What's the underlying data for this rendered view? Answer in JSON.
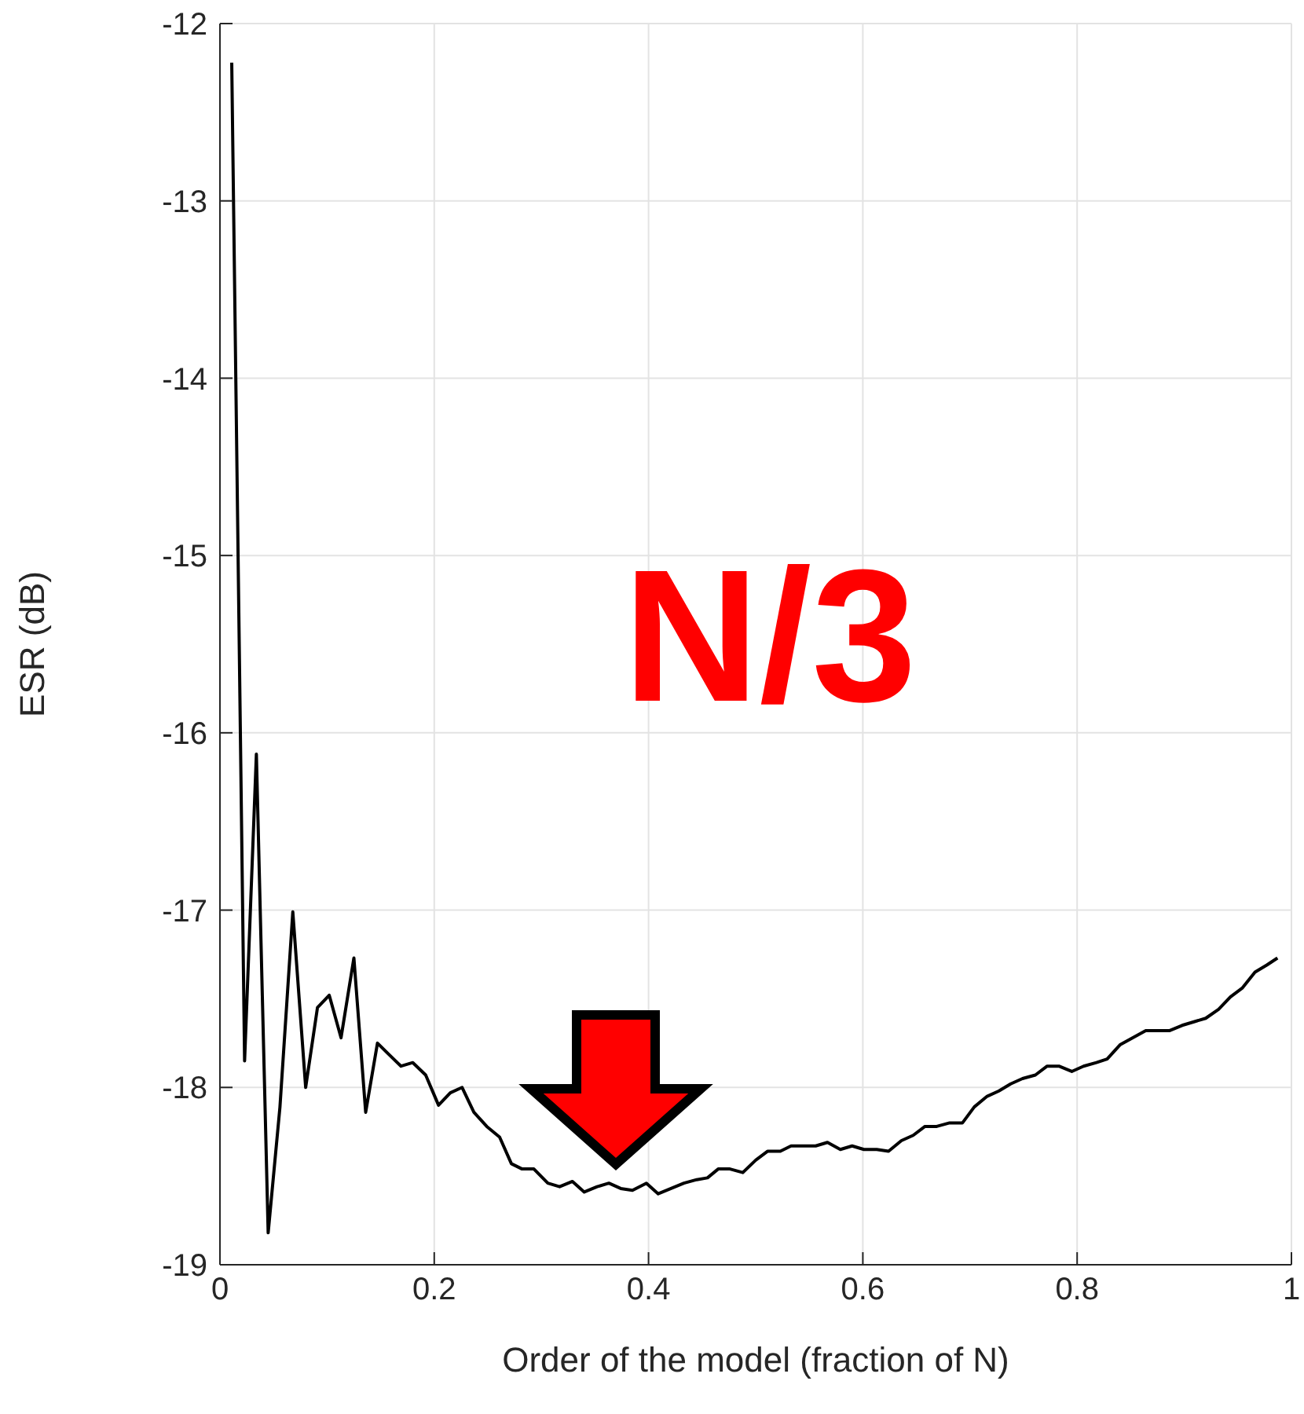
{
  "chart_data": {
    "type": "line",
    "xlabel": "Order of the model (fraction of N)",
    "ylabel": "ESR (dB)",
    "annotations": [
      "N/3"
    ],
    "xlim": [
      0,
      1
    ],
    "xticks": [
      0,
      0.2,
      0.4,
      0.6,
      0.8,
      1
    ],
    "ylim": [
      -19,
      -12
    ],
    "yticks": [
      -19,
      -18,
      -17,
      -16,
      -15,
      -14,
      -13,
      -12
    ],
    "grid": true,
    "series": [
      {
        "color": "#000000",
        "x": [
          0.011,
          0.023,
          0.034,
          0.045,
          0.056,
          0.068,
          0.08,
          0.091,
          0.102,
          0.113,
          0.125,
          0.136,
          0.147,
          0.157,
          0.169,
          0.18,
          0.192,
          0.204,
          0.215,
          0.226,
          0.237,
          0.249,
          0.261,
          0.272,
          0.282,
          0.293,
          0.306,
          0.317,
          0.329,
          0.34,
          0.352,
          0.363,
          0.374,
          0.385,
          0.398,
          0.409,
          0.421,
          0.433,
          0.445,
          0.455,
          0.465,
          0.476,
          0.488,
          0.5,
          0.511,
          0.523,
          0.533,
          0.545,
          0.556,
          0.567,
          0.579,
          0.59,
          0.601,
          0.613,
          0.624,
          0.636,
          0.647,
          0.658,
          0.669,
          0.681,
          0.693,
          0.704,
          0.716,
          0.727,
          0.738,
          0.749,
          0.761,
          0.772,
          0.783,
          0.795,
          0.806,
          0.818,
          0.828,
          0.84,
          0.852,
          0.864,
          0.875,
          0.886,
          0.898,
          0.909,
          0.92,
          0.932,
          0.943,
          0.954,
          0.966,
          0.977,
          0.987
        ],
        "values": [
          -12.22,
          -17.85,
          -16.12,
          -18.82,
          -18.11,
          -17.01,
          -18.0,
          -17.55,
          -17.48,
          -17.72,
          -17.27,
          -18.14,
          -17.75,
          -17.81,
          -17.88,
          -17.86,
          -17.93,
          -18.1,
          -18.03,
          -18.0,
          -18.14,
          -18.22,
          -18.28,
          -18.43,
          -18.46,
          -18.46,
          -18.54,
          -18.56,
          -18.53,
          -18.59,
          -18.56,
          -18.54,
          -18.57,
          -18.58,
          -18.54,
          -18.6,
          -18.57,
          -18.54,
          -18.52,
          -18.51,
          -18.46,
          -18.46,
          -18.48,
          -18.41,
          -18.36,
          -18.36,
          -18.33,
          -18.33,
          -18.33,
          -18.31,
          -18.35,
          -18.33,
          -18.35,
          -18.35,
          -18.36,
          -18.3,
          -18.27,
          -18.22,
          -18.22,
          -18.2,
          -18.2,
          -18.11,
          -18.05,
          -18.02,
          -17.98,
          -17.95,
          -17.93,
          -17.88,
          -17.88,
          -17.91,
          -17.88,
          -17.86,
          -17.84,
          -17.76,
          -17.72,
          -17.68,
          -17.68,
          -17.68,
          -17.65,
          -17.63,
          -17.61,
          -17.56,
          -17.49,
          -17.44,
          -17.35,
          -17.31,
          -17.27
        ]
      }
    ]
  }
}
